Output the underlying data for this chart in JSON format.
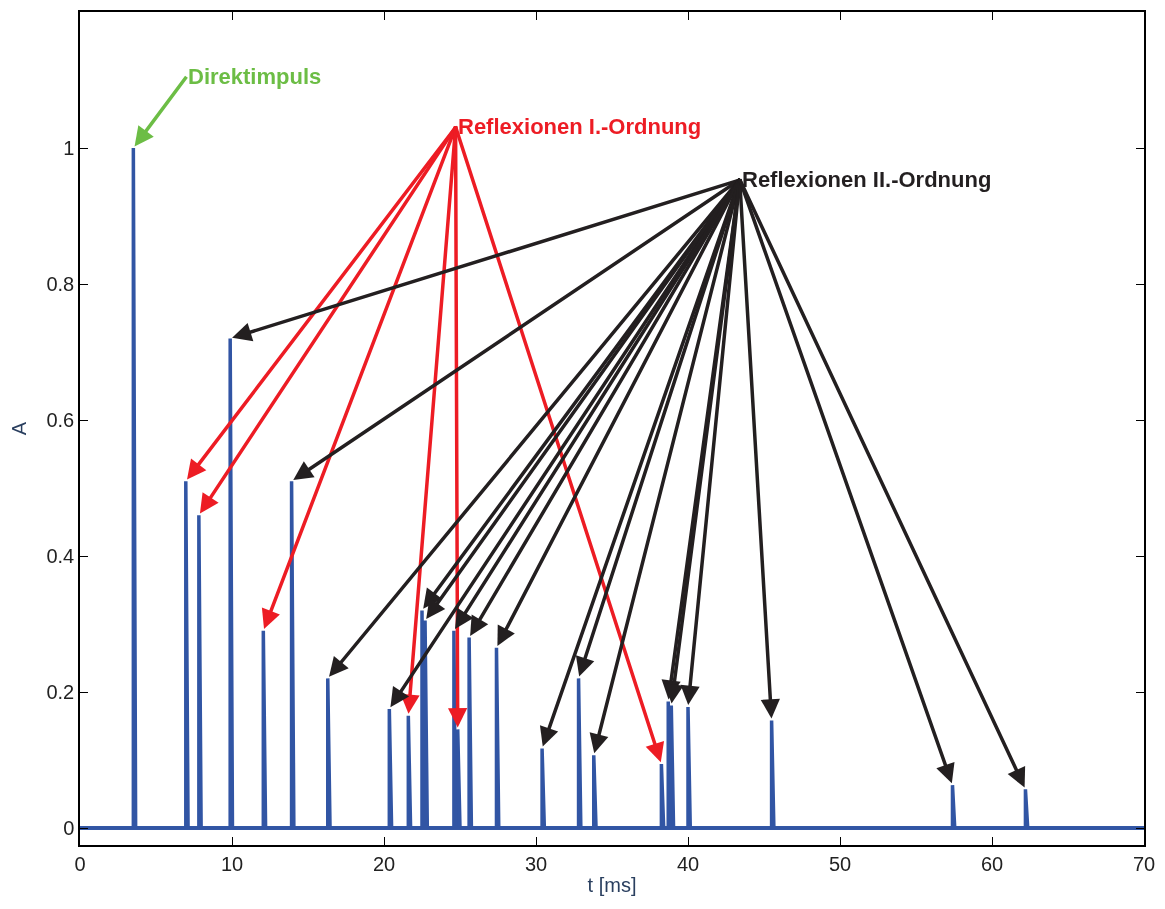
{
  "chart_data": {
    "type": "line",
    "xlabel": "t [ms]",
    "ylabel": "A",
    "xlim": [
      0,
      70
    ],
    "xticks": [
      0,
      10,
      20,
      30,
      40,
      50,
      60,
      70
    ],
    "ylim": [
      -0.025,
      1.2
    ],
    "yticks": [
      0,
      0.2,
      0.4,
      0.6,
      0.8,
      1
    ],
    "marker": "none",
    "line_style": "solid",
    "series": [
      {
        "color": "#3155a4",
        "x": [
          0,
          3.51,
          3.51,
          3.66,
          70
        ],
        "values": [
          0,
          0,
          1.0,
          0,
          0
        ]
      },
      {
        "color": "#3155a4",
        "x": [
          0,
          6.96,
          6.96,
          7.11,
          7.82,
          7.82,
          7.97,
          12.06,
          12.06,
          12.21,
          21.6,
          21.6,
          21.75,
          24.85,
          24.85,
          25.0,
          38.25,
          38.25,
          38.4,
          70
        ],
        "values": [
          0,
          0,
          0.51,
          0,
          0,
          0.46,
          0,
          0,
          0.29,
          0,
          0,
          0.165,
          0,
          0,
          0.145,
          0,
          0,
          0.094,
          0,
          0
        ]
      },
      {
        "color": "#3155a4",
        "x": [
          0,
          9.88,
          9.88,
          10.03,
          13.92,
          13.92,
          14.07,
          16.3,
          16.3,
          16.45,
          20.35,
          20.35,
          20.5,
          22.5,
          22.5,
          22.6,
          22.7,
          22.7,
          22.85,
          24.6,
          24.6,
          24.7,
          25.6,
          25.6,
          25.75,
          27.4,
          27.4,
          27.55,
          30.4,
          30.4,
          30.55,
          32.8,
          32.8,
          32.95,
          33.8,
          33.8,
          33.95,
          38.7,
          38.7,
          38.8,
          38.9,
          38.9,
          39.05,
          40.0,
          40.0,
          40.15,
          45.5,
          45.5,
          45.65,
          57.4,
          57.4,
          57.55,
          62.2,
          62.2,
          62.35,
          70
        ],
        "values": [
          0,
          0,
          0.72,
          0,
          0,
          0.51,
          0,
          0,
          0.22,
          0,
          0,
          0.175,
          0,
          0,
          0.32,
          0,
          0,
          0.305,
          0,
          0,
          0.29,
          0,
          0,
          0.28,
          0,
          0,
          0.265,
          0,
          0,
          0.117,
          0,
          0,
          0.22,
          0,
          0,
          0.107,
          0,
          0,
          0.186,
          0,
          0,
          0.18,
          0,
          0,
          0.178,
          0,
          0,
          0.158,
          0,
          0,
          0.063,
          0,
          0,
          0.057,
          0,
          0
        ]
      }
    ],
    "annotations": [
      {
        "text": "Direktimpuls",
        "x": 3.51,
        "y": 1.0
      },
      {
        "text": "Reflexionen I.-Ordnung",
        "x": 6.96,
        "y": 0.51
      },
      {
        "text": "Reflexionen II.-Ordnung",
        "x": 9.88,
        "y": 0.72
      }
    ]
  }
}
